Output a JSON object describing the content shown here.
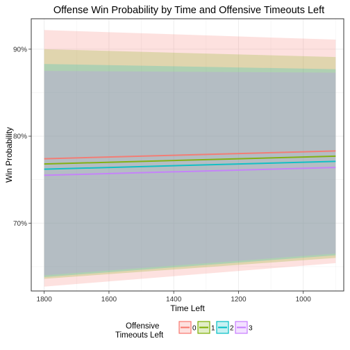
{
  "chart_data": {
    "type": "line",
    "title": "Offense Win Probability by Time and Offensive Timeouts Left",
    "xlabel": "Time Left",
    "ylabel": "Win Probability",
    "x_reversed": true,
    "xlim": [
      1840,
      875
    ],
    "ylim": [
      0.622,
      0.935
    ],
    "x_ticks": [
      1800,
      1600,
      1400,
      1200,
      1000
    ],
    "x_tick_labels": [
      "1800",
      "1600",
      "1400",
      "1200",
      "1000"
    ],
    "y_ticks": [
      0.7,
      0.8,
      0.9
    ],
    "y_tick_labels": [
      "70%",
      "80%",
      "90%"
    ],
    "grid": true,
    "x": [
      1800,
      900
    ],
    "series": [
      {
        "name": "0",
        "color": "#F8766D",
        "values": [
          0.774,
          0.783
        ],
        "lower": [
          0.627,
          0.654
        ],
        "upper": [
          0.922,
          0.911
        ]
      },
      {
        "name": "1",
        "color": "#7CAE00",
        "values": [
          0.768,
          0.777
        ],
        "lower": [
          0.636,
          0.66
        ],
        "upper": [
          0.9,
          0.891
        ]
      },
      {
        "name": "2",
        "color": "#00BFC4",
        "values": [
          0.762,
          0.771
        ],
        "lower": [
          0.638,
          0.663
        ],
        "upper": [
          0.883,
          0.877
        ]
      },
      {
        "name": "3",
        "color": "#C77CFF",
        "values": [
          0.755,
          0.764
        ],
        "lower": [
          0.64,
          0.665
        ],
        "upper": [
          0.875,
          0.873
        ]
      }
    ],
    "legend": {
      "title_line1": "Offensive",
      "title_line2": "Timeouts Left",
      "position": "bottom"
    }
  }
}
